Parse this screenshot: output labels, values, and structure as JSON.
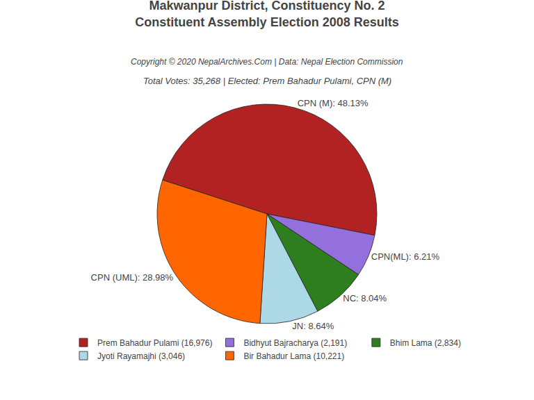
{
  "chart_data": {
    "type": "pie",
    "title": "Makwanpur District, Constituency No. 2\nConstituent Assembly Election 2008 Results",
    "annotations": [
      "Copyright © 2020 NepalArchives.Com | Data: Nepal Election Commission",
      "Total Votes: 35,268 | Elected: Prem Bahadur Pulami, CPN (M)"
    ],
    "categories": [
      "Prem Bahadur Pulami (16,976)",
      "Bidhyut Bajracharya (2,191)",
      "Bhim Lama (2,834)",
      "Jyoti Rayamajhi (3,046)",
      "Bir Bahadur Lama (10,221)"
    ],
    "values": [
      48.13,
      6.21,
      8.04,
      8.64,
      28.98
    ],
    "value_labels": [
      "CPN (M): 48.13%",
      "CPN(ML): 6.21%",
      "NC: 8.04%",
      "JN: 8.64%",
      "CPN (UML): 28.98%"
    ],
    "colors": [
      "#B22222",
      "#9370DB",
      "#2E7D1E",
      "#ADD8E6",
      "#FF6600"
    ],
    "data_labels": true,
    "legend": "bottom"
  }
}
